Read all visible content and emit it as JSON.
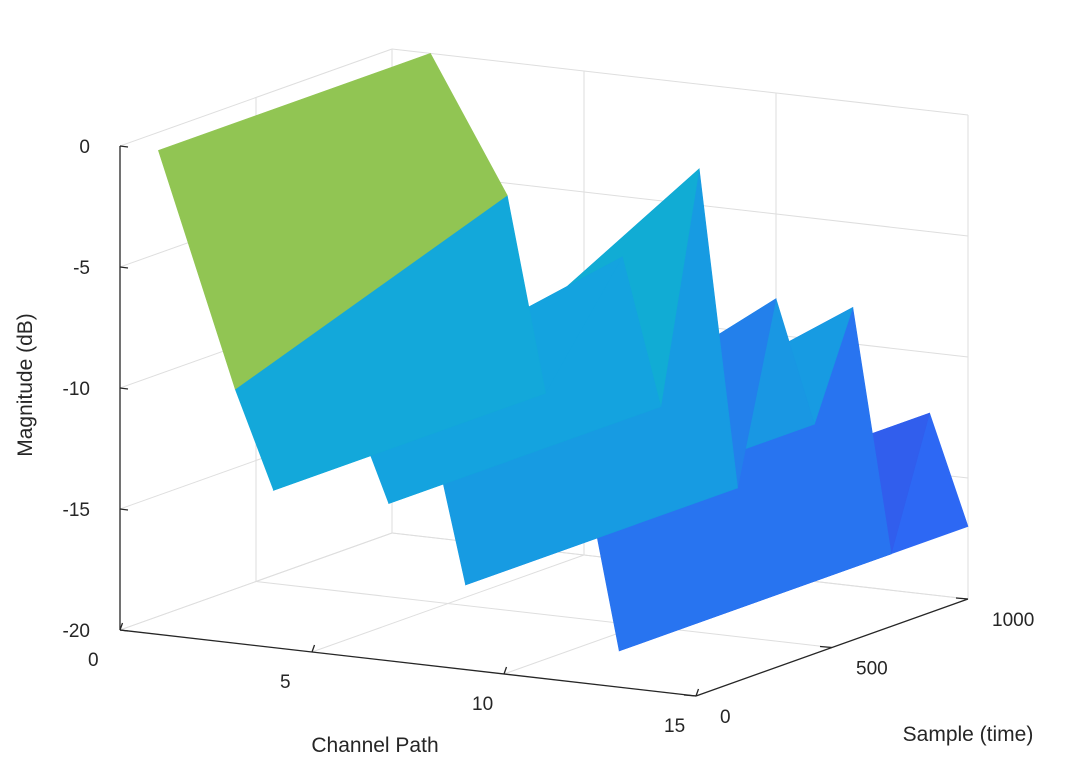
{
  "chart_data": {
    "type": "surface",
    "title": "",
    "xlabel": "Channel Path",
    "ylabel": "Sample (time)",
    "zlabel": "Magnitude (dB)",
    "xlim": [
      0,
      15
    ],
    "ylim": [
      0,
      1000
    ],
    "zlim": [
      -20,
      0
    ],
    "xticks": [
      "0",
      "5",
      "10",
      "15"
    ],
    "yticks": [
      "0",
      "500",
      "1000"
    ],
    "zticks": [
      "0",
      "-5",
      "-10",
      "-15",
      "-20"
    ],
    "grid": true,
    "colormap": "parula",
    "colors": {
      "high": "#f9fa14",
      "mid": "#2fc4a0",
      "low": "#3b47d6",
      "axis": "#262626",
      "grid": "#dedede"
    },
    "samples": [
      0,
      1000
    ],
    "paths": [
      {
        "path": 1,
        "magnitude": [
          0,
          0
        ]
      },
      {
        "path": 3,
        "magnitude": [
          -9.5,
          -5.5
        ]
      },
      {
        "path": 4,
        "magnitude": [
          -13.5,
          -13.5
        ]
      },
      {
        "path": 6,
        "magnitude": [
          -9.5,
          -7.5
        ]
      },
      {
        "path": 7,
        "magnitude": [
          -13.5,
          -13.5
        ]
      },
      {
        "path": 8,
        "magnitude": [
          -9.5,
          -3.5
        ]
      },
      {
        "path": 9,
        "magnitude": [
          -16.5,
          -16.5
        ]
      },
      {
        "path": 10,
        "magnitude": [
          -11.5,
          -8.5
        ]
      },
      {
        "path": 11,
        "magnitude": [
          -13.5,
          -13.5
        ]
      },
      {
        "path": 12,
        "magnitude": [
          -10.5,
          -8.5
        ]
      },
      {
        "path": 13,
        "magnitude": [
          -18.5,
          -18.5
        ]
      },
      {
        "path": 14,
        "magnitude": [
          -12.5,
          -12.5
        ]
      },
      {
        "path": 15,
        "magnitude": [
          -17,
          -17
        ]
      }
    ]
  }
}
